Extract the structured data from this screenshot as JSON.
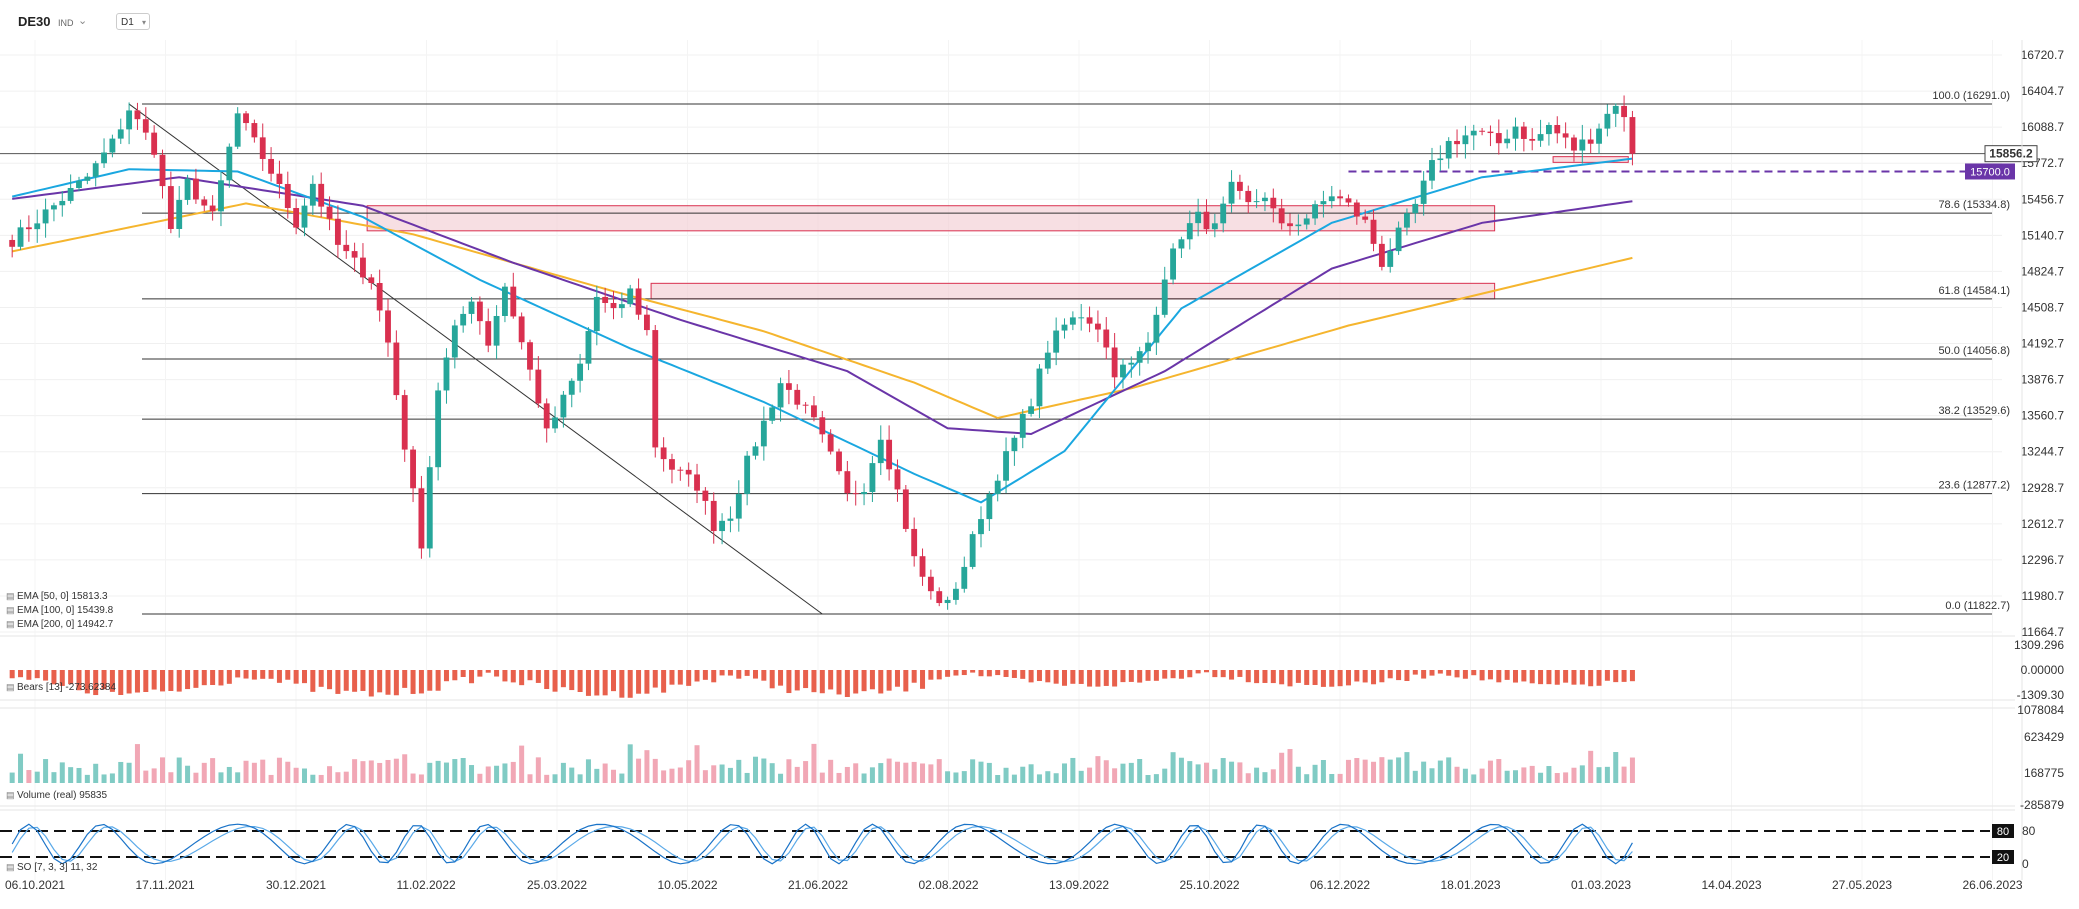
{
  "header": {
    "symbol": "DE30",
    "type": "IND",
    "timeframe": "D1"
  },
  "colors": {
    "up": "#26a69a",
    "down": "#d9304f",
    "ema50": "#1aa7e0",
    "ema100": "#6a35a8",
    "ema200": "#f5b52e",
    "fib": "#333333",
    "zone_fill": "#f2c9d0",
    "zone_stroke": "#d9304f",
    "level_line": "#6a35a8",
    "volume_up": "#80cbc4",
    "volume_down": "#f1a7b5",
    "so_main": "#1a73c8",
    "so_signal": "#5aa9e8",
    "bears": "#e8604c"
  },
  "indicators": {
    "ema50": {
      "label": "EMA [50, 0] 15813.3"
    },
    "ema100": {
      "label": "EMA [100, 0] 15439.8"
    },
    "ema200": {
      "label": "EMA [200, 0] 14942.7"
    },
    "bears": {
      "label": "Bears [13] -273.62384"
    },
    "volume": {
      "label": "Volume (real) 95835"
    },
    "so": {
      "label": "SO [7, 3, 3] 11, 32"
    }
  },
  "chart_data": [
    {
      "type": "candlestick",
      "title": "DE30",
      "x_labels": [
        "06.10.2021",
        "17.11.2021",
        "30.12.2021",
        "11.02.2022",
        "25.03.2022",
        "10.05.2022",
        "21.06.2022",
        "02.08.2022",
        "13.09.2022",
        "25.10.2022",
        "06.12.2022",
        "18.01.2023",
        "01.03.2023",
        "14.04.2023",
        "27.05.2023",
        "26.06.2023"
      ],
      "y_ticks": [
        16720.7,
        16404.7,
        16088.7,
        15772.7,
        15456.7,
        15140.7,
        14824.7,
        14508.7,
        14192.7,
        13876.7,
        13560.7,
        13244.7,
        12928.7,
        12612.7,
        12296.7,
        11980.7,
        11664.7
      ],
      "ylim": [
        11664.7,
        16720.7
      ],
      "current_price": "15856.2",
      "horizontal_level": "15700.0",
      "fibonacci": [
        {
          "label": "100.0 (16291.0)",
          "value": 16291.0
        },
        {
          "label": "78.6 (15334.8)",
          "value": 15334.8
        },
        {
          "label": "61.8 (14584.1)",
          "value": 14584.1
        },
        {
          "label": "50.0 (14056.8)",
          "value": 14056.8
        },
        {
          "label": "38.2 (13529.6)",
          "value": 13529.6
        },
        {
          "label": "23.6 (12877.2)",
          "value": 12877.2
        },
        {
          "label": "0.0 (11822.7)",
          "value": 11822.7
        }
      ],
      "close_path": [
        [
          0,
          15100
        ],
        [
          5,
          15400
        ],
        [
          9,
          15650
        ],
        [
          12,
          15950
        ],
        [
          14,
          16250
        ],
        [
          17,
          15900
        ],
        [
          19,
          15200
        ],
        [
          21,
          15600
        ],
        [
          24,
          15300
        ],
        [
          27,
          16200
        ],
        [
          29,
          15950
        ],
        [
          31,
          15700
        ],
        [
          34,
          15250
        ],
        [
          36,
          15600
        ],
        [
          39,
          15050
        ],
        [
          43,
          14750
        ],
        [
          45,
          14200
        ],
        [
          47,
          13300
        ],
        [
          49,
          12450
        ],
        [
          51,
          13800
        ],
        [
          53,
          14300
        ],
        [
          55,
          14600
        ],
        [
          57,
          14200
        ],
        [
          59,
          14700
        ],
        [
          61,
          14200
        ],
        [
          63,
          13700
        ],
        [
          64,
          13400
        ],
        [
          66,
          13700
        ],
        [
          68,
          14000
        ],
        [
          70,
          14600
        ],
        [
          72,
          14450
        ],
        [
          74,
          14650
        ],
        [
          76,
          14300
        ],
        [
          77,
          13300
        ],
        [
          79,
          13100
        ],
        [
          82,
          12950
        ],
        [
          84,
          12600
        ],
        [
          86,
          12700
        ],
        [
          88,
          13150
        ],
        [
          90,
          13500
        ],
        [
          92,
          13850
        ],
        [
          94,
          13700
        ],
        [
          96,
          13500
        ],
        [
          98,
          13200
        ],
        [
          100,
          12850
        ],
        [
          102,
          12950
        ],
        [
          104,
          13400
        ],
        [
          106,
          12900
        ],
        [
          108,
          12300
        ],
        [
          110,
          12000
        ],
        [
          112,
          11900
        ],
        [
          114,
          12250
        ],
        [
          116,
          12700
        ],
        [
          118,
          13050
        ],
        [
          120,
          13350
        ],
        [
          122,
          13700
        ],
        [
          124,
          14150
        ],
        [
          126,
          14350
        ],
        [
          128,
          14450
        ],
        [
          130,
          14350
        ],
        [
          132,
          13950
        ],
        [
          134,
          14000
        ],
        [
          136,
          14200
        ],
        [
          138,
          14800
        ],
        [
          140,
          15150
        ],
        [
          142,
          15300
        ],
        [
          144,
          15200
        ],
        [
          146,
          15550
        ],
        [
          148,
          15400
        ],
        [
          150,
          15500
        ],
        [
          152,
          15200
        ],
        [
          155,
          15300
        ],
        [
          158,
          15500
        ],
        [
          160,
          15400
        ],
        [
          162,
          15250
        ],
        [
          164,
          14900
        ],
        [
          166,
          15150
        ],
        [
          168,
          15400
        ],
        [
          170,
          15750
        ],
        [
          172,
          15950
        ],
        [
          175,
          16050
        ],
        [
          178,
          15950
        ],
        [
          180,
          16100
        ],
        [
          182,
          15950
        ],
        [
          184,
          16100
        ],
        [
          187,
          15900
        ],
        [
          189,
          16000
        ],
        [
          191,
          16200
        ],
        [
          192,
          16310
        ],
        [
          193,
          16150
        ],
        [
          194,
          15856
        ]
      ],
      "ema50_path": [
        [
          0,
          15480
        ],
        [
          14,
          15720
        ],
        [
          27,
          15700
        ],
        [
          42,
          15300
        ],
        [
          56,
          14750
        ],
        [
          74,
          14150
        ],
        [
          90,
          13680
        ],
        [
          108,
          13050
        ],
        [
          116,
          12800
        ],
        [
          126,
          13250
        ],
        [
          140,
          14500
        ],
        [
          158,
          15250
        ],
        [
          176,
          15650
        ],
        [
          194,
          15813
        ]
      ],
      "ema100_path": [
        [
          0,
          15460
        ],
        [
          20,
          15650
        ],
        [
          42,
          15400
        ],
        [
          60,
          14900
        ],
        [
          80,
          14400
        ],
        [
          100,
          13950
        ],
        [
          112,
          13450
        ],
        [
          122,
          13400
        ],
        [
          138,
          13950
        ],
        [
          158,
          14850
        ],
        [
          176,
          15250
        ],
        [
          194,
          15440
        ]
      ],
      "ema200_path": [
        [
          0,
          15000
        ],
        [
          28,
          15420
        ],
        [
          48,
          15150
        ],
        [
          72,
          14650
        ],
        [
          90,
          14300
        ],
        [
          108,
          13850
        ],
        [
          118,
          13540
        ],
        [
          134,
          13800
        ],
        [
          160,
          14350
        ],
        [
          180,
          14700
        ],
        [
          194,
          14943
        ]
      ],
      "zones": [
        {
          "from_index": 43,
          "to_index": 178,
          "low": 15180,
          "high": 15400
        },
        {
          "from_index": 77,
          "to_index": 178,
          "low": 14584,
          "high": 14720
        },
        {
          "from_index": 185,
          "to_index": 194,
          "low": 15780,
          "high": 15830
        }
      ],
      "trendline": {
        "from": [
          14,
          16291
        ],
        "to": [
          97,
          11822.7
        ]
      }
    },
    {
      "type": "bar",
      "title": "Bears [13] -273.62384",
      "y_ticks": [
        "1309.296",
        "0.00000",
        "-1309.30"
      ],
      "ylim": [
        -1309.296,
        1309.296
      ]
    },
    {
      "type": "bar",
      "title": "Volume (real) 95835",
      "y_ticks": [
        "1078084",
        "623429",
        "168775",
        "-285879"
      ],
      "ylim": [
        -285879,
        1078084
      ]
    },
    {
      "type": "line",
      "title": "SO [7, 3, 3] 11, 32",
      "y_ticks": [
        "80",
        "0"
      ],
      "levels": [
        "80",
        "20"
      ],
      "ylim": [
        0,
        100
      ]
    }
  ]
}
